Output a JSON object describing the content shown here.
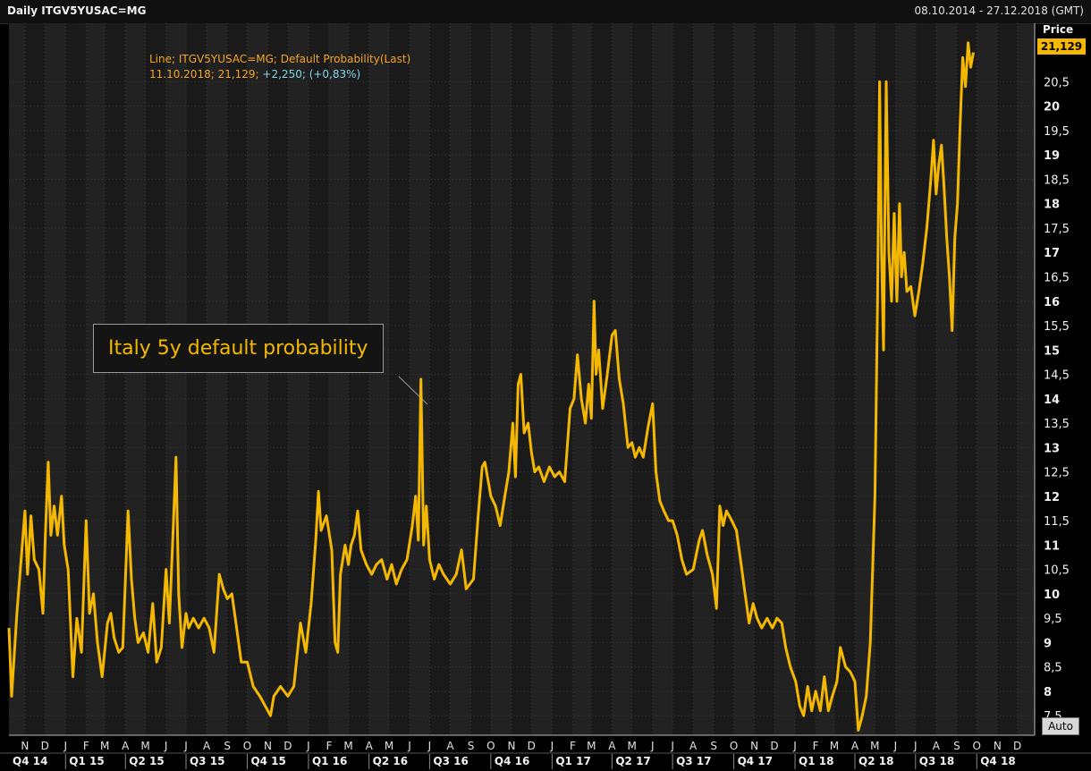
{
  "header": {
    "title": "Daily ITGV5YUSAC=MG",
    "date_range": "08.10.2014 - 27.12.2018 (GMT)"
  },
  "legend": {
    "line1": "Line; ITGV5YUSAC=MG; Default Probability(Last)",
    "line2_date": "11.10.2018; 21,129;",
    "line2_change": " +2,250; (+0,83%)"
  },
  "price_axis": {
    "label": "Price",
    "last_value": "21,129",
    "auto_button": "Auto"
  },
  "annotation": {
    "text": "Italy 5y default probability"
  },
  "colors": {
    "line": "#f5b800",
    "background": "#000000",
    "band": "#1e1e1e",
    "grid": "#3a3a3a"
  },
  "chart_data": {
    "type": "line",
    "title": "Daily ITGV5YUSAC=MG",
    "ylabel": "Price",
    "ylim": [
      7.1,
      21.7
    ],
    "grid": true,
    "x_range": [
      "2014-10-08",
      "2018-12-27"
    ],
    "y_ticks": [
      "7,5",
      "8",
      "8,5",
      "9",
      "9,5",
      "10",
      "10,5",
      "11",
      "11,5",
      "12",
      "12,5",
      "13",
      "13,5",
      "14",
      "14,5",
      "15",
      "15,5",
      "16",
      "16,5",
      "17",
      "17,5",
      "18",
      "18,5",
      "19",
      "19,5",
      "20",
      "20,5"
    ],
    "month_ticks": [
      "N",
      "D",
      "J",
      "F",
      "M",
      "A",
      "M",
      "J",
      "J",
      "A",
      "S",
      "O",
      "N",
      "D",
      "J",
      "F",
      "M",
      "A",
      "M",
      "J",
      "J",
      "A",
      "S",
      "O",
      "N",
      "D",
      "J",
      "F",
      "M",
      "A",
      "M",
      "J",
      "J",
      "A",
      "S",
      "O",
      "N",
      "D",
      "J",
      "F",
      "M",
      "A",
      "M",
      "J",
      "J",
      "A",
      "S",
      "O",
      "N",
      "D"
    ],
    "quarter_ticks": [
      "Q4 14",
      "Q1 15",
      "Q2 15",
      "Q3 15",
      "Q4 15",
      "Q1 16",
      "Q2 16",
      "Q3 16",
      "Q4 16",
      "Q1 17",
      "Q2 17",
      "Q3 17",
      "Q4 17",
      "Q1 18",
      "Q2 18",
      "Q3 18",
      "Q4 18"
    ],
    "series": [
      {
        "values": [
          [
            "2014-10-08",
            9.3
          ],
          [
            "2014-10-12",
            7.9
          ],
          [
            "2014-10-20",
            9.6
          ],
          [
            "2014-11-01",
            11.7
          ],
          [
            "2014-11-05",
            10.4
          ],
          [
            "2014-11-10",
            11.6
          ],
          [
            "2014-11-15",
            10.7
          ],
          [
            "2014-11-22",
            10.5
          ],
          [
            "2014-11-28",
            9.6
          ],
          [
            "2014-12-02",
            11.3
          ],
          [
            "2014-12-06",
            12.7
          ],
          [
            "2014-12-10",
            11.2
          ],
          [
            "2014-12-15",
            11.8
          ],
          [
            "2014-12-20",
            11.2
          ],
          [
            "2014-12-26",
            12.0
          ],
          [
            "2014-12-30",
            11.0
          ],
          [
            "2015-01-05",
            10.5
          ],
          [
            "2015-01-12",
            8.3
          ],
          [
            "2015-01-18",
            9.5
          ],
          [
            "2015-01-25",
            8.8
          ],
          [
            "2015-02-01",
            11.5
          ],
          [
            "2015-02-06",
            9.6
          ],
          [
            "2015-02-12",
            10.0
          ],
          [
            "2015-02-18",
            9.0
          ],
          [
            "2015-02-25",
            8.3
          ],
          [
            "2015-03-05",
            9.4
          ],
          [
            "2015-03-10",
            9.6
          ],
          [
            "2015-03-15",
            9.1
          ],
          [
            "2015-03-22",
            8.8
          ],
          [
            "2015-03-28",
            8.9
          ],
          [
            "2015-04-05",
            11.7
          ],
          [
            "2015-04-10",
            10.3
          ],
          [
            "2015-04-15",
            9.5
          ],
          [
            "2015-04-20",
            9.0
          ],
          [
            "2015-04-28",
            9.2
          ],
          [
            "2015-05-05",
            8.8
          ],
          [
            "2015-05-12",
            9.8
          ],
          [
            "2015-05-18",
            8.6
          ],
          [
            "2015-05-25",
            8.9
          ],
          [
            "2015-06-01",
            10.5
          ],
          [
            "2015-06-06",
            9.4
          ],
          [
            "2015-06-12",
            11.4
          ],
          [
            "2015-06-16",
            12.8
          ],
          [
            "2015-06-20",
            10.0
          ],
          [
            "2015-06-25",
            8.9
          ],
          [
            "2015-07-01",
            9.6
          ],
          [
            "2015-07-05",
            9.3
          ],
          [
            "2015-07-12",
            9.5
          ],
          [
            "2015-07-20",
            9.3
          ],
          [
            "2015-07-28",
            9.5
          ],
          [
            "2015-08-05",
            9.3
          ],
          [
            "2015-08-12",
            8.8
          ],
          [
            "2015-08-20",
            10.4
          ],
          [
            "2015-08-26",
            10.1
          ],
          [
            "2015-09-01",
            9.9
          ],
          [
            "2015-09-08",
            10.0
          ],
          [
            "2015-09-15",
            9.3
          ],
          [
            "2015-09-22",
            8.6
          ],
          [
            "2015-10-01",
            8.6
          ],
          [
            "2015-10-10",
            8.1
          ],
          [
            "2015-10-20",
            7.9
          ],
          [
            "2015-11-01",
            7.6
          ],
          [
            "2015-11-05",
            7.5
          ],
          [
            "2015-11-10",
            7.9
          ],
          [
            "2015-11-20",
            8.1
          ],
          [
            "2015-12-01",
            7.9
          ],
          [
            "2015-12-10",
            8.1
          ],
          [
            "2015-12-20",
            9.4
          ],
          [
            "2015-12-28",
            8.8
          ],
          [
            "2016-01-05",
            9.8
          ],
          [
            "2016-01-12",
            11.1
          ],
          [
            "2016-01-16",
            12.1
          ],
          [
            "2016-01-20",
            11.3
          ],
          [
            "2016-01-28",
            11.6
          ],
          [
            "2016-02-05",
            10.9
          ],
          [
            "2016-02-10",
            9.0
          ],
          [
            "2016-02-14",
            8.8
          ],
          [
            "2016-02-18",
            10.4
          ],
          [
            "2016-02-25",
            11.0
          ],
          [
            "2016-03-01",
            10.6
          ],
          [
            "2016-03-05",
            11.0
          ],
          [
            "2016-03-10",
            11.2
          ],
          [
            "2016-03-15",
            11.7
          ],
          [
            "2016-03-20",
            10.9
          ],
          [
            "2016-03-28",
            10.6
          ],
          [
            "2016-04-05",
            10.4
          ],
          [
            "2016-04-12",
            10.6
          ],
          [
            "2016-04-20",
            10.7
          ],
          [
            "2016-04-28",
            10.3
          ],
          [
            "2016-05-05",
            10.6
          ],
          [
            "2016-05-12",
            10.2
          ],
          [
            "2016-05-20",
            10.5
          ],
          [
            "2016-05-28",
            10.7
          ],
          [
            "2016-06-05",
            11.4
          ],
          [
            "2016-06-10",
            12.0
          ],
          [
            "2016-06-14",
            11.1
          ],
          [
            "2016-06-18",
            14.4
          ],
          [
            "2016-06-22",
            11.0
          ],
          [
            "2016-06-26",
            11.8
          ],
          [
            "2016-07-01",
            10.7
          ],
          [
            "2016-07-08",
            10.3
          ],
          [
            "2016-07-15",
            10.6
          ],
          [
            "2016-07-22",
            10.4
          ],
          [
            "2016-08-01",
            10.2
          ],
          [
            "2016-08-10",
            10.4
          ],
          [
            "2016-08-18",
            10.9
          ],
          [
            "2016-08-25",
            10.1
          ],
          [
            "2016-09-05",
            10.3
          ],
          [
            "2016-09-12",
            11.6
          ],
          [
            "2016-09-18",
            12.6
          ],
          [
            "2016-09-22",
            12.7
          ],
          [
            "2016-10-01",
            12.0
          ],
          [
            "2016-10-08",
            11.8
          ],
          [
            "2016-10-15",
            11.4
          ],
          [
            "2016-10-22",
            12.0
          ],
          [
            "2016-10-28",
            12.5
          ],
          [
            "2016-11-03",
            13.5
          ],
          [
            "2016-11-07",
            12.4
          ],
          [
            "2016-11-11",
            14.3
          ],
          [
            "2016-11-15",
            14.5
          ],
          [
            "2016-11-20",
            13.3
          ],
          [
            "2016-11-26",
            13.5
          ],
          [
            "2016-12-01",
            12.9
          ],
          [
            "2016-12-06",
            12.5
          ],
          [
            "2016-12-12",
            12.6
          ],
          [
            "2016-12-20",
            12.3
          ],
          [
            "2016-12-28",
            12.6
          ],
          [
            "2017-01-05",
            12.4
          ],
          [
            "2017-01-12",
            12.5
          ],
          [
            "2017-01-20",
            12.3
          ],
          [
            "2017-01-28",
            13.8
          ],
          [
            "2017-02-03",
            14.0
          ],
          [
            "2017-02-08",
            14.9
          ],
          [
            "2017-02-14",
            14.0
          ],
          [
            "2017-02-20",
            13.5
          ],
          [
            "2017-02-25",
            14.3
          ],
          [
            "2017-03-01",
            13.6
          ],
          [
            "2017-03-05",
            16.0
          ],
          [
            "2017-03-08",
            14.5
          ],
          [
            "2017-03-12",
            15.0
          ],
          [
            "2017-03-18",
            13.8
          ],
          [
            "2017-03-25",
            14.5
          ],
          [
            "2017-04-01",
            15.3
          ],
          [
            "2017-04-06",
            15.4
          ],
          [
            "2017-04-12",
            14.4
          ],
          [
            "2017-04-18",
            13.9
          ],
          [
            "2017-04-25",
            13.0
          ],
          [
            "2017-05-01",
            13.1
          ],
          [
            "2017-05-06",
            12.8
          ],
          [
            "2017-05-12",
            13.0
          ],
          [
            "2017-05-18",
            12.8
          ],
          [
            "2017-05-25",
            13.4
          ],
          [
            "2017-06-01",
            13.9
          ],
          [
            "2017-06-06",
            12.5
          ],
          [
            "2017-06-12",
            11.9
          ],
          [
            "2017-06-18",
            11.7
          ],
          [
            "2017-06-25",
            11.5
          ],
          [
            "2017-07-01",
            11.5
          ],
          [
            "2017-07-08",
            11.2
          ],
          [
            "2017-07-15",
            10.7
          ],
          [
            "2017-07-22",
            10.4
          ],
          [
            "2017-08-01",
            10.5
          ],
          [
            "2017-08-10",
            11.1
          ],
          [
            "2017-08-15",
            11.3
          ],
          [
            "2017-08-22",
            10.8
          ],
          [
            "2017-08-30",
            10.4
          ],
          [
            "2017-09-05",
            9.7
          ],
          [
            "2017-09-10",
            11.8
          ],
          [
            "2017-09-15",
            11.4
          ],
          [
            "2017-09-20",
            11.7
          ],
          [
            "2017-09-28",
            11.5
          ],
          [
            "2017-10-05",
            11.3
          ],
          [
            "2017-10-12",
            10.6
          ],
          [
            "2017-10-18",
            10.0
          ],
          [
            "2017-10-24",
            9.4
          ],
          [
            "2017-10-30",
            9.8
          ],
          [
            "2017-11-05",
            9.5
          ],
          [
            "2017-11-12",
            9.3
          ],
          [
            "2017-11-20",
            9.5
          ],
          [
            "2017-11-28",
            9.3
          ],
          [
            "2017-12-05",
            9.5
          ],
          [
            "2017-12-12",
            9.4
          ],
          [
            "2017-12-18",
            8.9
          ],
          [
            "2017-12-25",
            8.5
          ],
          [
            "2018-01-02",
            8.2
          ],
          [
            "2018-01-08",
            7.7
          ],
          [
            "2018-01-14",
            7.5
          ],
          [
            "2018-01-20",
            8.1
          ],
          [
            "2018-01-26",
            7.6
          ],
          [
            "2018-02-01",
            8.0
          ],
          [
            "2018-02-08",
            7.6
          ],
          [
            "2018-02-14",
            8.3
          ],
          [
            "2018-02-20",
            7.6
          ],
          [
            "2018-02-26",
            7.9
          ],
          [
            "2018-03-05",
            8.2
          ],
          [
            "2018-03-10",
            8.9
          ],
          [
            "2018-03-18",
            8.5
          ],
          [
            "2018-03-25",
            8.4
          ],
          [
            "2018-04-01",
            8.2
          ],
          [
            "2018-04-06",
            7.2
          ],
          [
            "2018-04-12",
            7.5
          ],
          [
            "2018-04-18",
            7.9
          ],
          [
            "2018-04-24",
            9.0
          ],
          [
            "2018-05-01",
            12.0
          ],
          [
            "2018-05-05",
            16.0
          ],
          [
            "2018-05-08",
            20.5
          ],
          [
            "2018-05-11",
            17.0
          ],
          [
            "2018-05-14",
            15.0
          ],
          [
            "2018-05-18",
            20.5
          ],
          [
            "2018-05-22",
            17.0
          ],
          [
            "2018-05-26",
            16.0
          ],
          [
            "2018-05-30",
            17.8
          ],
          [
            "2018-06-03",
            16.0
          ],
          [
            "2018-06-07",
            18.0
          ],
          [
            "2018-06-10",
            16.5
          ],
          [
            "2018-06-14",
            17.0
          ],
          [
            "2018-06-18",
            16.2
          ],
          [
            "2018-06-24",
            16.3
          ],
          [
            "2018-06-30",
            15.7
          ],
          [
            "2018-07-06",
            16.2
          ],
          [
            "2018-07-12",
            16.8
          ],
          [
            "2018-07-18",
            17.5
          ],
          [
            "2018-07-24",
            18.5
          ],
          [
            "2018-07-28",
            19.3
          ],
          [
            "2018-08-01",
            18.2
          ],
          [
            "2018-08-05",
            18.8
          ],
          [
            "2018-08-09",
            19.2
          ],
          [
            "2018-08-13",
            18.3
          ],
          [
            "2018-08-17",
            17.3
          ],
          [
            "2018-08-21",
            16.5
          ],
          [
            "2018-08-25",
            15.4
          ],
          [
            "2018-08-29",
            17.3
          ],
          [
            "2018-09-02",
            18.0
          ],
          [
            "2018-09-06",
            19.6
          ],
          [
            "2018-09-10",
            21.0
          ],
          [
            "2018-09-14",
            20.4
          ],
          [
            "2018-09-18",
            21.3
          ],
          [
            "2018-09-22",
            20.8
          ],
          [
            "2018-09-26",
            21.1
          ]
        ]
      }
    ]
  }
}
